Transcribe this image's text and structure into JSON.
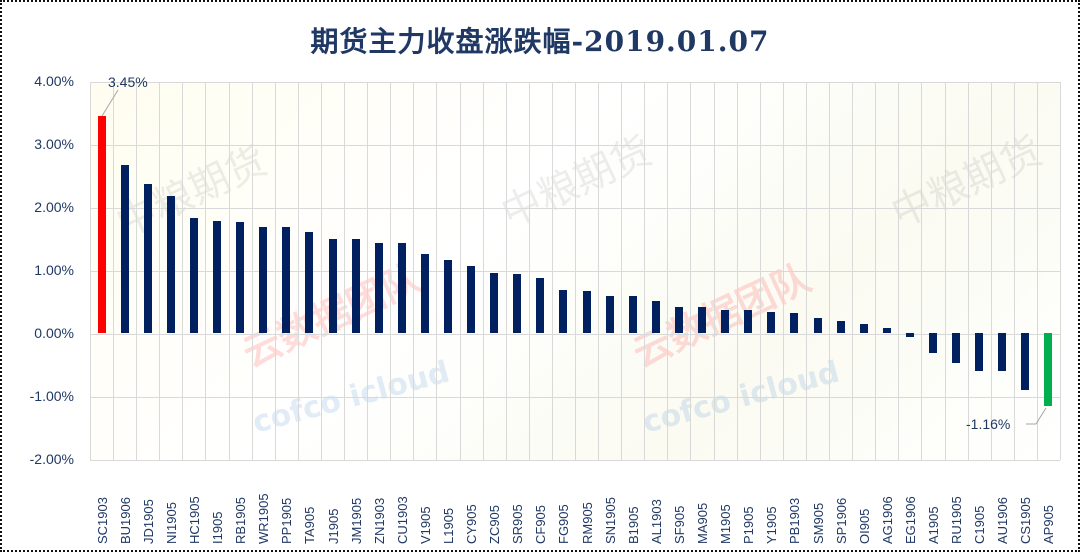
{
  "chart_data": {
    "type": "bar",
    "title": "期货主力收盘涨跌幅-2019.01.07",
    "xlabel": "",
    "ylabel": "",
    "ylim": [
      -0.02,
      0.04
    ],
    "yticks": [
      "4.00%",
      "3.00%",
      "2.00%",
      "1.00%",
      "0.00%",
      "-1.00%",
      "-2.00%"
    ],
    "grid": true,
    "legend": null,
    "categories": [
      "SC1903",
      "BU1906",
      "JD1905",
      "NI1905",
      "HC1905",
      "I1905",
      "RB1905",
      "WR1905",
      "PP1905",
      "TA905",
      "J1905",
      "JM1905",
      "ZN1903",
      "CU1903",
      "V1905",
      "L1905",
      "CY905",
      "ZC905",
      "SR905",
      "CF905",
      "FG905",
      "RM905",
      "SN1905",
      "B1905",
      "AL1903",
      "SF905",
      "MA905",
      "M1905",
      "P1905",
      "Y1905",
      "PB1903",
      "SM905",
      "SP1906",
      "OI905",
      "AG1906",
      "EG1906",
      "A1905",
      "RU1905",
      "C1905",
      "AU1906",
      "CS1905",
      "AP905"
    ],
    "values": [
      3.45,
      2.66,
      2.36,
      2.17,
      1.83,
      1.77,
      1.76,
      1.69,
      1.68,
      1.6,
      1.5,
      1.5,
      1.43,
      1.43,
      1.26,
      1.16,
      1.07,
      0.96,
      0.94,
      0.88,
      0.69,
      0.66,
      0.58,
      0.58,
      0.51,
      0.42,
      0.42,
      0.37,
      0.36,
      0.33,
      0.31,
      0.24,
      0.19,
      0.15,
      0.08,
      -0.07,
      -0.31,
      -0.48,
      -0.6,
      -0.6,
      -0.9,
      -1.16
    ],
    "value_unit": "%",
    "annotations": [
      {
        "category": "SC1903",
        "text": "3.45%"
      },
      {
        "category": "AP905",
        "text": "-1.16%"
      }
    ],
    "colors": {
      "max": "#ff0000",
      "min": "#00b050",
      "default": "#002060"
    }
  },
  "watermarks": {
    "brand_cn": "中粮期货",
    "cloud_cn": "云数据团队",
    "cloud_en": "cofco icloud"
  }
}
